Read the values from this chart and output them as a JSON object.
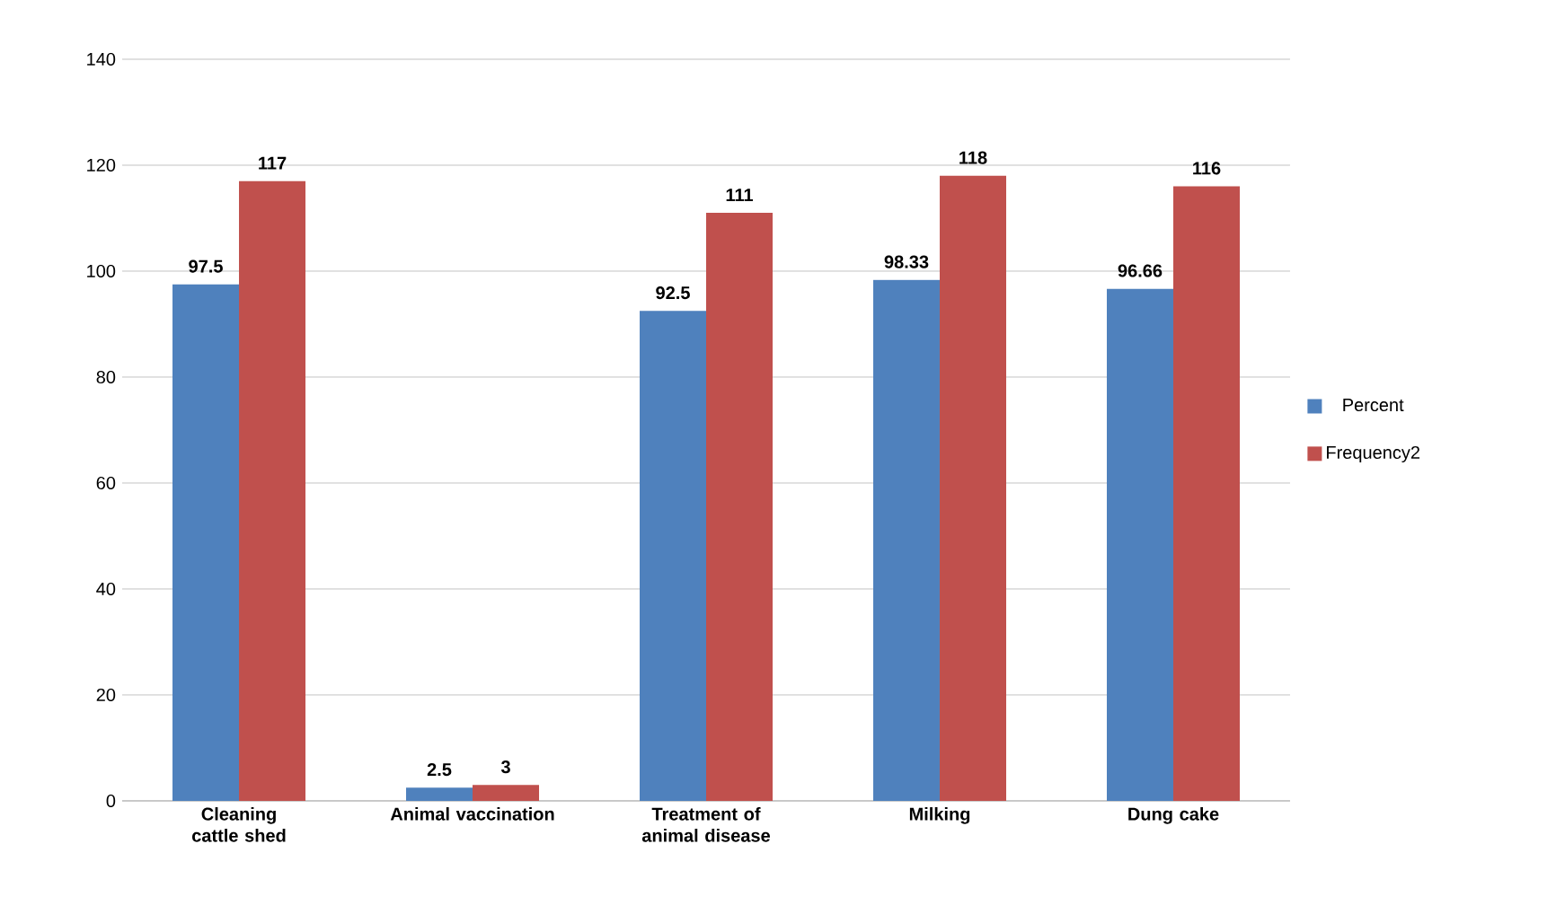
{
  "chart_data": {
    "type": "bar",
    "categories": [
      "Cleaning cattle shed",
      "Animal vaccination",
      "Treatment of animal disease",
      "Milking",
      "Dung cake"
    ],
    "series": [
      {
        "name": "Percent",
        "color": "#4f81bd",
        "values": [
          97.5,
          2.5,
          92.5,
          98.33,
          96.66
        ]
      },
      {
        "name": "Frequency2",
        "color": "#c0504d",
        "values": [
          117,
          3,
          111,
          118,
          116
        ]
      }
    ],
    "ylim": [
      0,
      140
    ],
    "yticks": [
      0,
      20,
      40,
      60,
      80,
      100,
      120,
      140
    ],
    "grid": "y",
    "legend": "right",
    "data_labels": true
  }
}
